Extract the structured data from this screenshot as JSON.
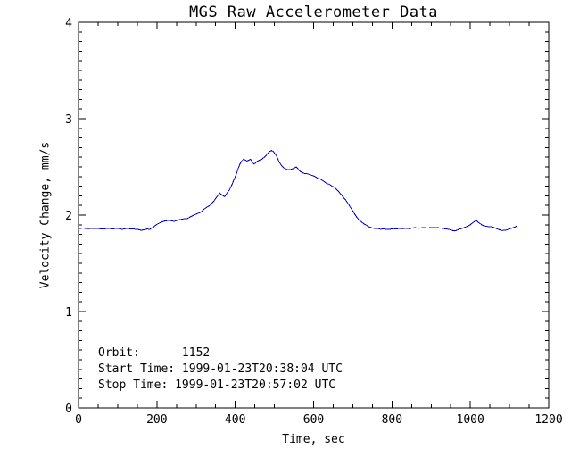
{
  "chart_data": {
    "type": "line",
    "title": "MGS Raw Accelerometer Data",
    "xlabel": "Time, sec",
    "ylabel": "Velocity Change, mm/s",
    "xlim": [
      0,
      1200
    ],
    "ylim": [
      0,
      4
    ],
    "x_ticks": [
      0,
      200,
      400,
      600,
      800,
      1000,
      1200
    ],
    "y_ticks": [
      0,
      1,
      2,
      3,
      4
    ],
    "x_minor_interval": 50,
    "y_minor_interval": 0.1,
    "grid": false,
    "legend": false,
    "background_color": "#ffffff",
    "axis_color": "#000000",
    "line_color": "#0000cc",
    "orbit": "1152",
    "start_time": "1999-01-23T20:38:04 UTC",
    "stop_time": "1999-01-23T20:57:02 UTC",
    "annotations": [
      "Orbit:      1152",
      "Start Time: 1999-01-23T20:38:04 UTC",
      "Stop Time: 1999-01-23T20:57:02 UTC"
    ],
    "series": [
      {
        "name": "velocity-change",
        "points": [
          [
            0,
            1.86
          ],
          [
            12,
            1.865
          ],
          [
            25,
            1.858
          ],
          [
            37,
            1.862
          ],
          [
            50,
            1.86
          ],
          [
            62,
            1.856
          ],
          [
            75,
            1.861
          ],
          [
            87,
            1.857
          ],
          [
            100,
            1.862
          ],
          [
            112,
            1.852
          ],
          [
            118,
            1.858
          ],
          [
            125,
            1.861
          ],
          [
            137,
            1.856
          ],
          [
            150,
            1.853
          ],
          [
            160,
            1.843
          ],
          [
            168,
            1.848
          ],
          [
            175,
            1.856
          ],
          [
            182,
            1.852
          ],
          [
            190,
            1.872
          ],
          [
            200,
            1.905
          ],
          [
            210,
            1.925
          ],
          [
            221,
            1.94
          ],
          [
            232,
            1.945
          ],
          [
            244,
            1.935
          ],
          [
            255,
            1.95
          ],
          [
            266,
            1.96
          ],
          [
            278,
            1.965
          ],
          [
            289,
            1.99
          ],
          [
            300,
            2.01
          ],
          [
            312,
            2.03
          ],
          [
            323,
            2.07
          ],
          [
            335,
            2.1
          ],
          [
            346,
            2.15
          ],
          [
            355,
            2.2
          ],
          [
            360,
            2.23
          ],
          [
            366,
            2.21
          ],
          [
            373,
            2.19
          ],
          [
            379,
            2.23
          ],
          [
            385,
            2.26
          ],
          [
            392,
            2.32
          ],
          [
            398,
            2.38
          ],
          [
            403,
            2.43
          ],
          [
            408,
            2.49
          ],
          [
            412,
            2.53
          ],
          [
            416,
            2.56
          ],
          [
            421,
            2.58
          ],
          [
            426,
            2.57
          ],
          [
            430,
            2.56
          ],
          [
            435,
            2.57
          ],
          [
            439,
            2.58
          ],
          [
            444,
            2.55
          ],
          [
            448,
            2.53
          ],
          [
            452,
            2.54
          ],
          [
            457,
            2.56
          ],
          [
            462,
            2.57
          ],
          [
            468,
            2.58
          ],
          [
            474,
            2.6
          ],
          [
            479,
            2.62
          ],
          [
            483,
            2.64
          ],
          [
            488,
            2.66
          ],
          [
            493,
            2.67
          ],
          [
            497,
            2.66
          ],
          [
            501,
            2.64
          ],
          [
            506,
            2.61
          ],
          [
            510,
            2.57
          ],
          [
            514,
            2.54
          ],
          [
            519,
            2.51
          ],
          [
            524,
            2.49
          ],
          [
            529,
            2.48
          ],
          [
            534,
            2.47
          ],
          [
            540,
            2.47
          ],
          [
            546,
            2.48
          ],
          [
            551,
            2.49
          ],
          [
            556,
            2.5
          ],
          [
            562,
            2.47
          ],
          [
            567,
            2.45
          ],
          [
            572,
            2.44
          ],
          [
            578,
            2.43
          ],
          [
            583,
            2.43
          ],
          [
            590,
            2.42
          ],
          [
            597,
            2.41
          ],
          [
            604,
            2.4
          ],
          [
            611,
            2.38
          ],
          [
            619,
            2.37
          ],
          [
            626,
            2.35
          ],
          [
            633,
            2.33
          ],
          [
            640,
            2.32
          ],
          [
            647,
            2.3
          ],
          [
            653,
            2.29
          ],
          [
            660,
            2.26
          ],
          [
            665,
            2.24
          ],
          [
            671,
            2.21
          ],
          [
            677,
            2.18
          ],
          [
            683,
            2.15
          ],
          [
            688,
            2.12
          ],
          [
            694,
            2.08
          ],
          [
            699,
            2.05
          ],
          [
            705,
            2.01
          ],
          [
            710,
            1.98
          ],
          [
            716,
            1.95
          ],
          [
            722,
            1.93
          ],
          [
            728,
            1.91
          ],
          [
            733,
            1.9
          ],
          [
            740,
            1.88
          ],
          [
            747,
            1.87
          ],
          [
            755,
            1.86
          ],
          [
            763,
            1.862
          ],
          [
            771,
            1.853
          ],
          [
            779,
            1.858
          ],
          [
            787,
            1.85
          ],
          [
            795,
            1.853
          ],
          [
            803,
            1.86
          ],
          [
            811,
            1.856
          ],
          [
            819,
            1.862
          ],
          [
            827,
            1.858
          ],
          [
            835,
            1.864
          ],
          [
            843,
            1.858
          ],
          [
            851,
            1.865
          ],
          [
            859,
            1.87
          ],
          [
            867,
            1.862
          ],
          [
            875,
            1.868
          ],
          [
            883,
            1.872
          ],
          [
            891,
            1.866
          ],
          [
            899,
            1.87
          ],
          [
            907,
            1.868
          ],
          [
            915,
            1.872
          ],
          [
            923,
            1.866
          ],
          [
            931,
            1.86
          ],
          [
            939,
            1.856
          ],
          [
            947,
            1.85
          ],
          [
            955,
            1.84
          ],
          [
            961,
            1.835
          ],
          [
            967,
            1.845
          ],
          [
            972,
            1.855
          ],
          [
            978,
            1.86
          ],
          [
            984,
            1.87
          ],
          [
            990,
            1.88
          ],
          [
            995,
            1.89
          ],
          [
            1000,
            1.9
          ],
          [
            1006,
            1.92
          ],
          [
            1011,
            1.935
          ],
          [
            1015,
            1.945
          ],
          [
            1019,
            1.93
          ],
          [
            1024,
            1.915
          ],
          [
            1029,
            1.9
          ],
          [
            1034,
            1.89
          ],
          [
            1040,
            1.885
          ],
          [
            1047,
            1.88
          ],
          [
            1053,
            1.878
          ],
          [
            1059,
            1.875
          ],
          [
            1065,
            1.862
          ],
          [
            1070,
            1.855
          ],
          [
            1076,
            1.845
          ],
          [
            1081,
            1.84
          ],
          [
            1087,
            1.842
          ],
          [
            1093,
            1.845
          ],
          [
            1099,
            1.855
          ],
          [
            1104,
            1.862
          ],
          [
            1110,
            1.87
          ],
          [
            1115,
            1.88
          ],
          [
            1120,
            1.888
          ]
        ]
      }
    ]
  }
}
